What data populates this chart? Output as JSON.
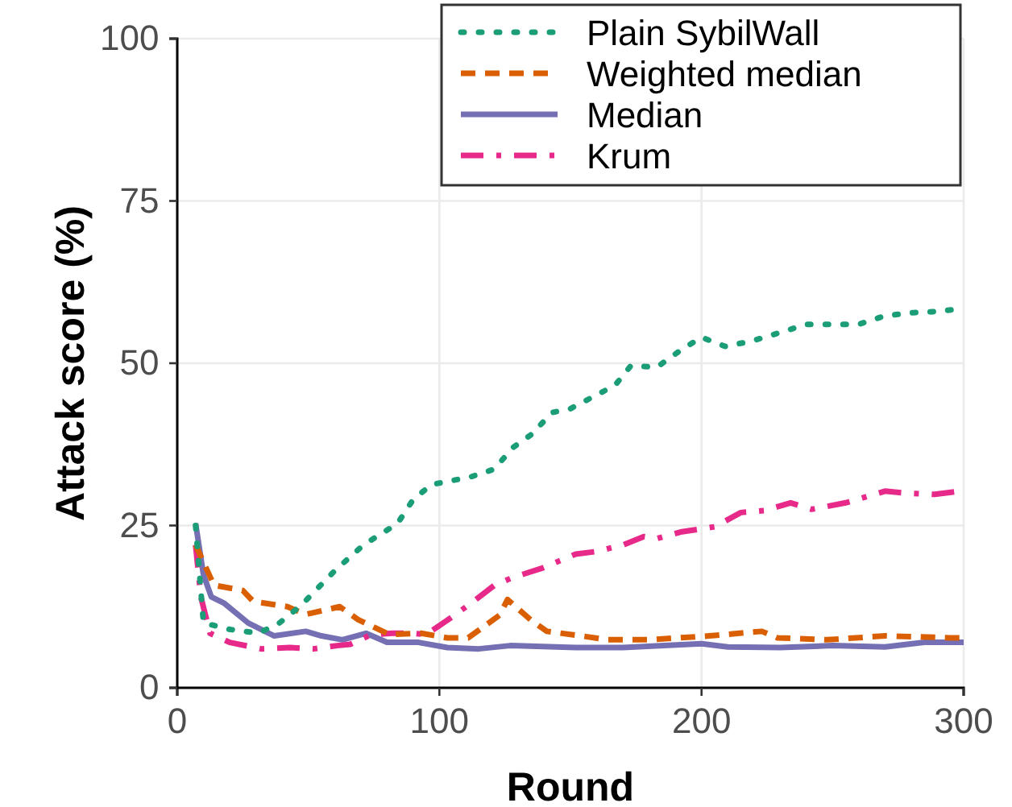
{
  "chart_data": {
    "type": "line",
    "xlabel": "Round",
    "ylabel": "Attack score (%)",
    "xlim": [
      0,
      300
    ],
    "ylim": [
      0,
      100
    ],
    "xticks": [
      0,
      100,
      200,
      300
    ],
    "yticks": [
      0,
      25,
      50,
      75,
      100
    ],
    "grid": true,
    "legend": "top right",
    "series": [
      {
        "name": "Plain SybilWall",
        "color": "#1b9e77",
        "line_style": "dotted",
        "x": [
          7,
          10,
          20,
          31,
          39,
          47,
          60,
          71,
          84,
          90,
          97,
          112,
          121,
          128,
          135,
          143,
          150,
          167,
          173,
          183,
          192,
          200,
          209,
          219,
          229,
          240,
          250,
          260,
          270,
          281,
          291,
          300
        ],
        "values": [
          25,
          10,
          9,
          8.4,
          10,
          12.6,
          18,
          22,
          25.3,
          29,
          31.3,
          32.5,
          33.7,
          37,
          39,
          42.4,
          43,
          46.6,
          49.6,
          49.4,
          52,
          54,
          52.6,
          53.4,
          54.6,
          56,
          56,
          56,
          57.3,
          57.8,
          58,
          58.5
        ]
      },
      {
        "name": "Weighted median",
        "color": "#d95f02",
        "line_style": "dashed",
        "x": [
          7,
          14,
          25,
          29,
          42,
          49,
          62,
          69,
          81,
          93,
          103,
          111,
          123,
          126,
          135,
          141,
          154,
          164,
          180,
          203,
          223,
          229,
          248,
          270,
          295,
          300
        ],
        "values": [
          22,
          15.8,
          15,
          13.3,
          12.5,
          11.3,
          12.5,
          10.5,
          8.2,
          8.4,
          7.7,
          7.7,
          11.2,
          13.6,
          10.4,
          8.7,
          8,
          7.4,
          7.4,
          8,
          8.7,
          7.7,
          7.4,
          8,
          7.7,
          7.7
        ]
      },
      {
        "name": "Median",
        "color": "#7570b3",
        "line_style": "solid",
        "x": [
          7,
          10,
          13,
          18,
          27,
          37,
          49,
          55,
          63,
          72,
          80,
          92,
          103,
          115,
          127,
          152,
          170,
          200,
          210,
          230,
          250,
          270,
          285,
          300
        ],
        "values": [
          25.3,
          17.4,
          14,
          13,
          10,
          8,
          8.7,
          8,
          7.4,
          8.4,
          7,
          7,
          6.2,
          6,
          6.5,
          6.2,
          6.2,
          6.8,
          6.3,
          6.2,
          6.5,
          6.3,
          7,
          7
        ]
      },
      {
        "name": "Krum",
        "color": "#e7298a",
        "line_style": "dashdot",
        "x": [
          7,
          9,
          12.5,
          20,
          32,
          43,
          52,
          61,
          66,
          74,
          82,
          90,
          95,
          103,
          112,
          121,
          128,
          139,
          152,
          160,
          170,
          178,
          183,
          192,
          205,
          215,
          224,
          234,
          242,
          255,
          270,
          278,
          289,
          299
        ],
        "values": [
          22,
          14,
          8.4,
          7,
          6,
          6.2,
          6,
          6.5,
          6.7,
          8.2,
          8.4,
          8.4,
          8.2,
          10.4,
          13,
          15.8,
          17,
          18.4,
          20.6,
          21,
          22,
          23.3,
          23,
          24,
          24.8,
          27,
          27.3,
          28.5,
          27.5,
          28.5,
          30.3,
          30,
          29.8,
          30.3
        ]
      }
    ]
  }
}
